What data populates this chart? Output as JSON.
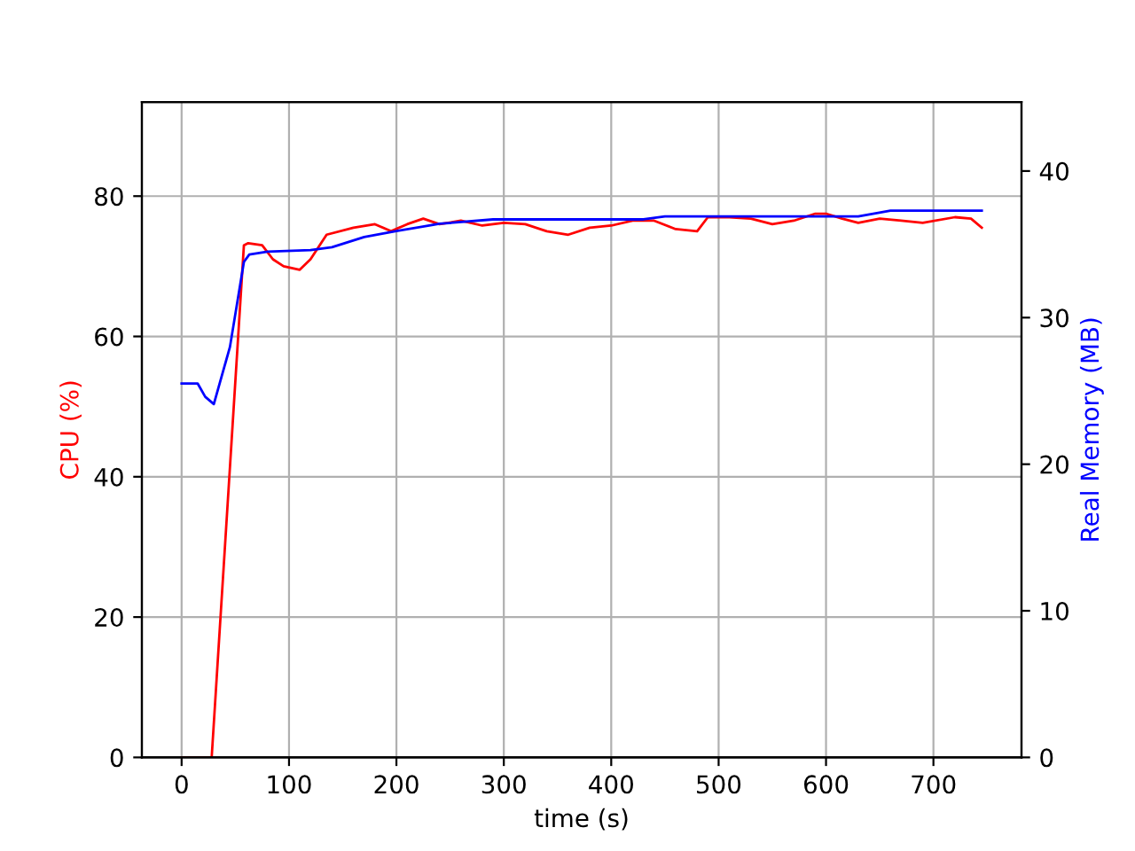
{
  "chart_data": {
    "type": "line",
    "xlabel": "time (s)",
    "ylabel": "CPU (%)",
    "y2label": "Real Memory (MB)",
    "xlim": [
      -37,
      782
    ],
    "xticks": [
      0,
      100,
      200,
      300,
      400,
      500,
      600,
      700
    ],
    "ylim": [
      0,
      93.4
    ],
    "yticks": [
      0,
      20,
      40,
      60,
      80
    ],
    "y2lim": [
      0,
      44.7
    ],
    "y2ticks": [
      0,
      10,
      20,
      30,
      40
    ],
    "grid": true,
    "legend": false,
    "series": [
      {
        "color": "#ff0000",
        "x": [
          0,
          28,
          58,
          62,
          75,
          85,
          95,
          110,
          120,
          135,
          160,
          180,
          195,
          210,
          225,
          240,
          260,
          280,
          300,
          320,
          340,
          360,
          380,
          400,
          420,
          440,
          460,
          480,
          490,
          510,
          530,
          550,
          570,
          590,
          600,
          615,
          630,
          650,
          670,
          690,
          720,
          735,
          745
        ],
        "values": [
          0,
          0,
          73,
          73.3,
          73,
          71,
          70,
          69.5,
          71,
          74.5,
          75.5,
          76,
          75,
          76,
          76.8,
          76,
          76.5,
          75.8,
          76.2,
          76,
          75,
          74.5,
          75.5,
          75.8,
          76.5,
          76.5,
          75.3,
          75,
          77,
          77,
          76.8,
          76,
          76.5,
          77.5,
          77.5,
          76.8,
          76.2,
          76.8,
          76.5,
          76.2,
          77,
          76.8,
          75.5
        ]
      },
      {
        "color": "#0000ff",
        "axis": "y2",
        "x": [
          0,
          15,
          22,
          30,
          45,
          58,
          63,
          80,
          120,
          140,
          170,
          200,
          240,
          290,
          430,
          450,
          630,
          660,
          745
        ],
        "values": [
          25.5,
          25.5,
          24.6,
          24.1,
          28,
          33.8,
          34.3,
          34.5,
          34.6,
          34.8,
          35.5,
          35.9,
          36.4,
          36.7,
          36.7,
          36.9,
          36.9,
          37.3,
          37.3
        ]
      }
    ]
  }
}
